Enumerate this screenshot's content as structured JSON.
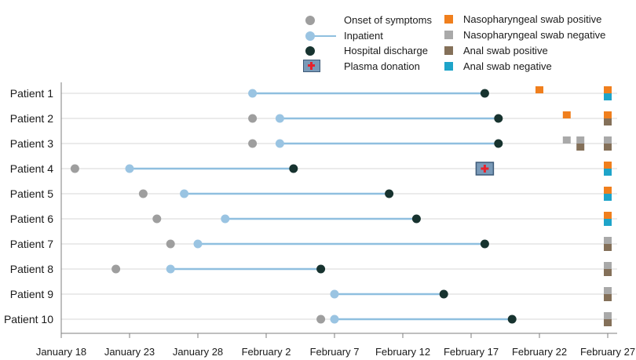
{
  "chart_data": {
    "type": "timeline",
    "x_axis": {
      "tick_labels": [
        "January 18",
        "January 23",
        "January 28",
        "February 2",
        "February 7",
        "February 12",
        "February 17",
        "February 22",
        "February 27"
      ],
      "tick_days": [
        18,
        23,
        28,
        33,
        38,
        43,
        48,
        53,
        58
      ],
      "range_days": [
        18,
        58
      ]
    },
    "legend": {
      "onset": "Onset of symptoms",
      "inpatient": "Inpatient",
      "discharge": "Hospital discharge",
      "plasma": "Plasma donation",
      "np_pos": "Nasopharyngeal swab positive",
      "np_neg": "Nasopharyngeal swab negative",
      "anal_pos": "Anal swab positive",
      "anal_neg": "Anal swab negative"
    },
    "colors": {
      "onset": "#9e9e9e",
      "inpatient": "#9ac4e2",
      "inpatient_line": "#8fbfdf",
      "discharge": "#17332f",
      "np_pos": "#f07f1d",
      "np_neg": "#a9a9a9",
      "anal_pos": "#847059",
      "anal_neg": "#1ea4c9",
      "plasma_fill": "#7a9ab8",
      "plasma_cross": "#e8212b"
    },
    "patients": [
      {
        "label": "Patient 1",
        "onset": null,
        "admit": 32,
        "discharge": 49,
        "swabs": [
          {
            "day": 53,
            "np": "pos"
          },
          {
            "day": 58,
            "np": "pos",
            "anal": "neg"
          }
        ]
      },
      {
        "label": "Patient 2",
        "onset": 32,
        "admit": 34,
        "discharge": 50,
        "swabs": [
          {
            "day": 55,
            "np": "pos"
          },
          {
            "day": 58,
            "np": "pos",
            "anal": "pos"
          }
        ]
      },
      {
        "label": "Patient 3",
        "onset": 32,
        "admit": 34,
        "discharge": 50,
        "swabs": [
          {
            "day": 55,
            "np": "neg"
          },
          {
            "day": 56,
            "np": "neg",
            "anal": "pos"
          },
          {
            "day": 58,
            "np": "neg",
            "anal": "pos"
          }
        ]
      },
      {
        "label": "Patient 4",
        "onset": 19,
        "admit": 23,
        "discharge": 35,
        "plasma": 49,
        "swabs": [
          {
            "day": 58,
            "np": "pos",
            "anal": "neg"
          }
        ]
      },
      {
        "label": "Patient 5",
        "onset": 24,
        "admit": 27,
        "discharge": 42,
        "swabs": [
          {
            "day": 58,
            "np": "pos",
            "anal": "neg"
          }
        ]
      },
      {
        "label": "Patient 6",
        "onset": 25,
        "admit": 30,
        "discharge": 44,
        "swabs": [
          {
            "day": 58,
            "np": "pos",
            "anal": "neg"
          }
        ]
      },
      {
        "label": "Patient 7",
        "onset": 26,
        "admit": 28,
        "discharge": 49,
        "swabs": [
          {
            "day": 58,
            "np": "neg",
            "anal": "pos"
          }
        ]
      },
      {
        "label": "Patient 8",
        "onset": 22,
        "admit": 26,
        "discharge": 37,
        "swabs": [
          {
            "day": 58,
            "np": "neg",
            "anal": "pos"
          }
        ]
      },
      {
        "label": "Patient 9",
        "onset": null,
        "admit": 38,
        "discharge": 46,
        "swabs": [
          {
            "day": 58,
            "np": "neg",
            "anal": "pos"
          }
        ]
      },
      {
        "label": "Patient 10",
        "onset": 37,
        "admit": 38,
        "discharge": 51,
        "swabs": [
          {
            "day": 58,
            "np": "neg",
            "anal": "pos"
          }
        ]
      }
    ]
  }
}
